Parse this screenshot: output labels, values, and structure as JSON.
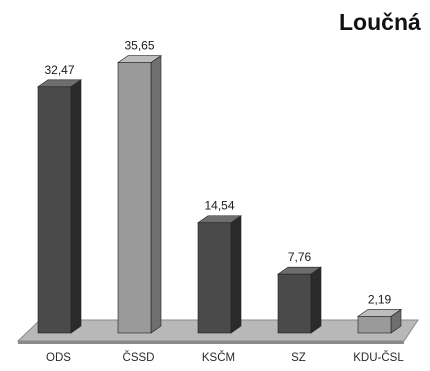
{
  "chart_data": {
    "type": "bar",
    "title": "Loučná",
    "categories": [
      "ODS",
      "ČSSD",
      "KSČM",
      "SZ",
      "KDU-ČSL"
    ],
    "values": [
      32.47,
      35.65,
      14.54,
      7.76,
      2.19
    ],
    "value_labels": [
      "32,47",
      "35,65",
      "14,54",
      "7,76",
      "2,19"
    ],
    "ylim": [
      0,
      36
    ],
    "grid": false,
    "three_d": true,
    "colors": {
      "dark_front": "#4a4a4a",
      "dark_side": "#2b2b2b",
      "dark_top": "#6e6e6e",
      "light_front": "#9a9a9a",
      "light_side": "#6f6f6f",
      "light_top": "#bdbdbd",
      "floor": "#b8b8b8",
      "floor_edge": "#8a8a8a"
    },
    "bar_shades": [
      "dark",
      "light",
      "dark",
      "dark",
      "light"
    ]
  }
}
